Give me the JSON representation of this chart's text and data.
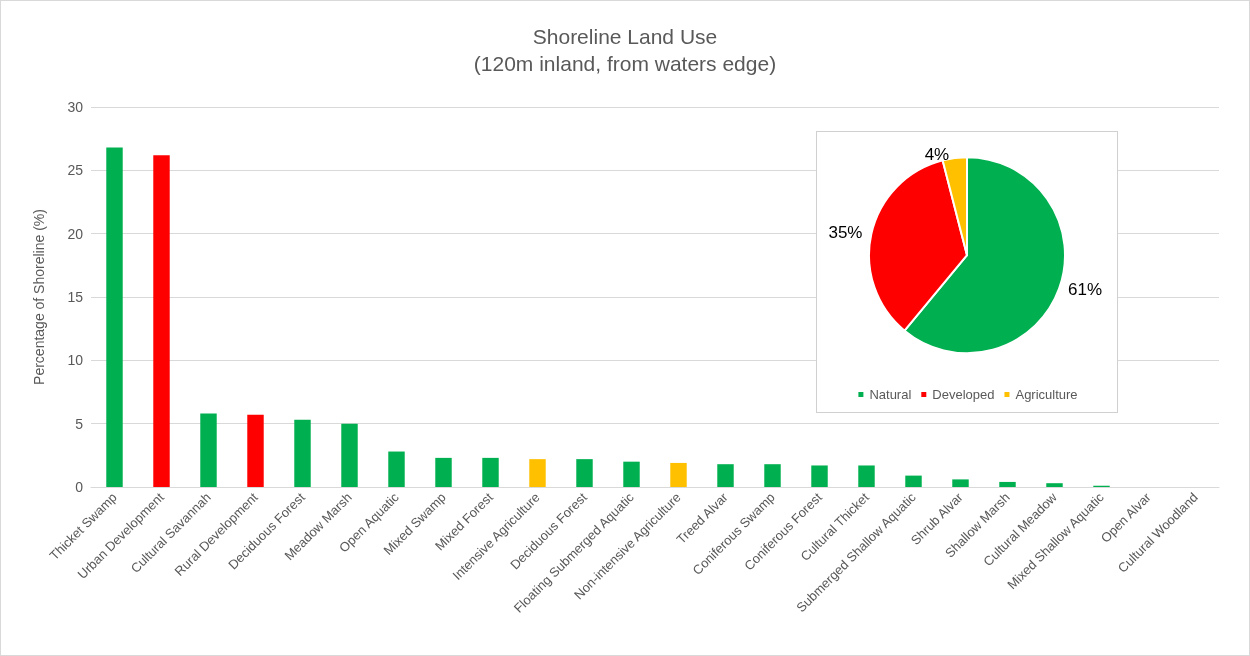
{
  "chart_data": [
    {
      "type": "bar",
      "title": "Shoreline Land Use",
      "subtitle": "(120m inland, from waters edge)",
      "ylabel": "Percentage of Shoreline (%)",
      "categories": [
        "Thicket Swamp",
        "Urban Development",
        "Cultural Savannah",
        "Rural Development",
        "Deciduous Forest",
        "Meadow Marsh",
        "Open Aquatic",
        "Mixed Swamp",
        "Mixed Forest",
        "Intensive Agriculture",
        "Deciduous Forest",
        "Floating Submerged Aquatic",
        "Non-intensive Agriculture",
        "Treed Alvar",
        "Coniferous Swamp",
        "Coniferous Forest",
        "Cultural Thicket",
        "Submerged Shallow Aquatic",
        "Shrub Alvar",
        "Shallow Marsh",
        "Cultural Meadow",
        "Mixed Shallow Aquatic",
        "Open Alvar",
        "Cultural Woodland"
      ],
      "values": [
        26.8,
        26.2,
        5.8,
        5.7,
        5.3,
        5.0,
        2.8,
        2.3,
        2.3,
        2.2,
        2.2,
        2.0,
        1.9,
        1.8,
        1.8,
        1.7,
        1.7,
        0.9,
        0.6,
        0.4,
        0.3,
        0.1,
        0,
        0
      ],
      "colors": [
        "#00b050",
        "#ff0000",
        "#00b050",
        "#ff0000",
        "#00b050",
        "#00b050",
        "#00b050",
        "#00b050",
        "#00b050",
        "#ffc000",
        "#00b050",
        "#00b050",
        "#ffc000",
        "#00b050",
        "#00b050",
        "#00b050",
        "#00b050",
        "#00b050",
        "#00b050",
        "#00b050",
        "#00b050",
        "#00b050",
        "#00b050",
        "#00b050"
      ],
      "ylim": [
        0,
        30
      ],
      "yticks": [
        0,
        5,
        10,
        15,
        20,
        25,
        30
      ],
      "grid": "y",
      "legend": false
    },
    {
      "type": "pie",
      "categories": [
        "Natural",
        "Developed",
        "Agriculture"
      ],
      "values": [
        61,
        35,
        4
      ],
      "colors": [
        "#00b050",
        "#ff0000",
        "#ffc000"
      ],
      "value_labels": [
        "61%",
        "35%",
        "4%"
      ],
      "legend": "bottom"
    }
  ]
}
